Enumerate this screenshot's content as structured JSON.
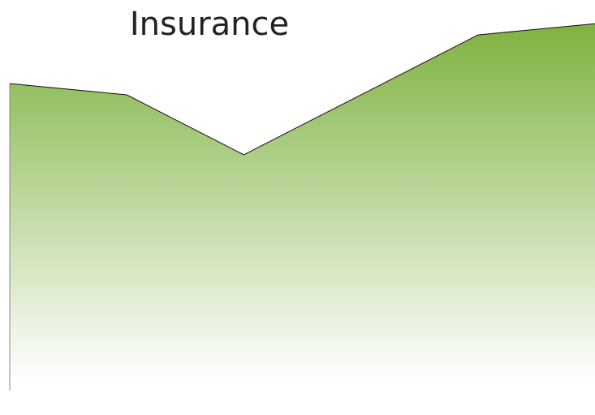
{
  "chart_data": {
    "type": "area",
    "title": "Insurance",
    "categories": [
      null,
      null,
      null,
      null,
      null,
      null
    ],
    "values": [
      82,
      79,
      63,
      79,
      95,
      98
    ],
    "color": "#7cb03c",
    "ylim": [
      0,
      100
    ]
  }
}
